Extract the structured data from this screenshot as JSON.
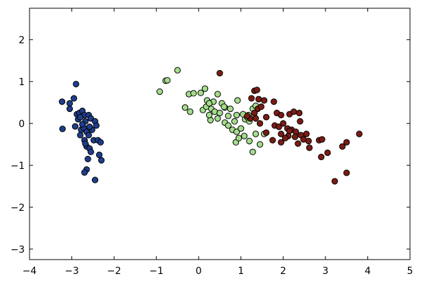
{
  "chart_data": {
    "type": "scatter",
    "title": "",
    "xlabel": "",
    "ylabel": "",
    "xlim": [
      -4,
      5
    ],
    "ylim": [
      -3.25,
      2.75
    ],
    "grid": false,
    "legend": "none",
    "xticks": [
      -4,
      -3,
      -2,
      -1,
      0,
      1,
      2,
      3,
      4,
      5
    ],
    "xtick_labels": [
      "−4",
      "−3",
      "−2",
      "−1",
      "0",
      "1",
      "2",
      "3",
      "4",
      "5"
    ],
    "yticks": [
      -3,
      -2,
      -1,
      0,
      1,
      2
    ],
    "ytick_labels": [
      "−3",
      "−2",
      "−1",
      "0",
      "1",
      "2"
    ],
    "series": [
      {
        "color": "#1f3d8c",
        "points": [
          [
            -3.23,
            0.52
          ],
          [
            -3.05,
            0.48
          ],
          [
            -2.9,
            0.94
          ],
          [
            -2.88,
            0.22
          ],
          [
            -2.82,
            0.25
          ],
          [
            -2.75,
            0.3
          ],
          [
            -2.7,
            0.2
          ],
          [
            -2.6,
            0.2
          ],
          [
            -2.55,
            0.12
          ],
          [
            -2.45,
            0.05
          ],
          [
            -2.42,
            -0.05
          ],
          [
            -3.22,
            -0.13
          ],
          [
            -2.85,
            0.1
          ],
          [
            -2.92,
            -0.07
          ],
          [
            -2.78,
            -0.15
          ],
          [
            -2.72,
            -0.1
          ],
          [
            -2.65,
            -0.2
          ],
          [
            -2.6,
            -0.28
          ],
          [
            -2.52,
            -0.15
          ],
          [
            -2.48,
            -0.4
          ],
          [
            -2.38,
            -0.4
          ],
          [
            -2.32,
            -0.45
          ],
          [
            -2.8,
            -0.28
          ],
          [
            -2.7,
            -0.4
          ],
          [
            -2.65,
            -0.55
          ],
          [
            -2.58,
            -0.6
          ],
          [
            -2.55,
            -0.68
          ],
          [
            -2.62,
            -0.85
          ],
          [
            -2.35,
            -0.75
          ],
          [
            -2.3,
            -0.88
          ],
          [
            -2.65,
            -1.1
          ],
          [
            -2.7,
            -1.17
          ],
          [
            -2.45,
            -1.35
          ],
          [
            -3.05,
            0.35
          ],
          [
            -2.95,
            0.6
          ],
          [
            -2.8,
            0.15
          ],
          [
            -2.68,
            0.05
          ],
          [
            -2.75,
            -0.02
          ],
          [
            -2.58,
            -0.08
          ],
          [
            -2.68,
            -0.48
          ]
        ]
      },
      {
        "color": "#a4dc8c",
        "points": [
          [
            -0.5,
            1.27
          ],
          [
            -0.78,
            1.02
          ],
          [
            -0.92,
            0.76
          ],
          [
            -0.74,
            1.03
          ],
          [
            -0.23,
            0.7
          ],
          [
            -0.12,
            0.72
          ],
          [
            0.05,
            0.73
          ],
          [
            0.15,
            0.83
          ],
          [
            0.2,
            0.55
          ],
          [
            0.35,
            0.52
          ],
          [
            0.45,
            0.7
          ],
          [
            -0.32,
            0.38
          ],
          [
            -0.2,
            0.28
          ],
          [
            0.1,
            0.32
          ],
          [
            0.18,
            0.4
          ],
          [
            0.25,
            0.48
          ],
          [
            0.3,
            0.35
          ],
          [
            0.38,
            0.28
          ],
          [
            0.5,
            0.25
          ],
          [
            0.55,
            0.48
          ],
          [
            0.62,
            0.38
          ],
          [
            0.75,
            0.35
          ],
          [
            0.9,
            0.2
          ],
          [
            0.92,
            0.55
          ],
          [
            1.05,
            0.22
          ],
          [
            1.1,
            0.1
          ],
          [
            1.18,
            0.2
          ],
          [
            1.2,
            0.05
          ],
          [
            1.28,
            0.35
          ],
          [
            1.35,
            0.42
          ],
          [
            0.28,
            0.08
          ],
          [
            0.45,
            0.12
          ],
          [
            0.62,
            0.02
          ],
          [
            0.7,
            -0.05
          ],
          [
            0.8,
            -0.15
          ],
          [
            0.9,
            -0.2
          ],
          [
            1.0,
            -0.12
          ],
          [
            1.08,
            -0.3
          ],
          [
            1.2,
            -0.42
          ],
          [
            1.35,
            -0.25
          ],
          [
            1.45,
            -0.5
          ],
          [
            1.55,
            -0.25
          ],
          [
            0.88,
            -0.45
          ],
          [
            1.28,
            -0.68
          ],
          [
            0.85,
            0.05
          ],
          [
            0.7,
            0.18
          ],
          [
            0.25,
            0.2
          ],
          [
            0.95,
            -0.35
          ],
          [
            1.15,
            0.15
          ],
          [
            0.6,
            0.4
          ]
        ]
      },
      {
        "color": "#7a1c14",
        "points": [
          [
            0.5,
            1.2
          ],
          [
            1.32,
            0.78
          ],
          [
            1.38,
            0.8
          ],
          [
            1.42,
            0.58
          ],
          [
            1.55,
            0.55
          ],
          [
            1.25,
            0.6
          ],
          [
            1.78,
            0.52
          ],
          [
            1.4,
            0.35
          ],
          [
            1.32,
            0.25
          ],
          [
            1.48,
            0.4
          ],
          [
            1.6,
            0.15
          ],
          [
            1.22,
            0.12
          ],
          [
            1.35,
            0.12
          ],
          [
            1.15,
            0.18
          ],
          [
            1.85,
            0.25
          ],
          [
            1.95,
            0.2
          ],
          [
            2.15,
            0.22
          ],
          [
            2.38,
            0.25
          ],
          [
            2.25,
            0.28
          ],
          [
            2.4,
            0.05
          ],
          [
            1.8,
            -0.05
          ],
          [
            1.9,
            -0.08
          ],
          [
            2.0,
            0.0
          ],
          [
            2.1,
            -0.12
          ],
          [
            2.2,
            -0.15
          ],
          [
            2.3,
            -0.2
          ],
          [
            2.42,
            -0.28
          ],
          [
            2.55,
            -0.25
          ],
          [
            2.6,
            -0.42
          ],
          [
            2.48,
            -0.38
          ],
          [
            2.28,
            -0.32
          ],
          [
            2.12,
            -0.3
          ],
          [
            1.95,
            -0.25
          ],
          [
            1.6,
            -0.22
          ],
          [
            1.75,
            -0.4
          ],
          [
            1.95,
            -0.45
          ],
          [
            2.35,
            -0.48
          ],
          [
            2.62,
            -0.58
          ],
          [
            2.85,
            -0.4
          ],
          [
            2.92,
            -0.38
          ],
          [
            3.05,
            -0.7
          ],
          [
            2.9,
            -0.8
          ],
          [
            3.4,
            -0.55
          ],
          [
            3.5,
            -0.45
          ],
          [
            3.8,
            -0.25
          ],
          [
            3.5,
            -1.18
          ],
          [
            3.22,
            -1.38
          ],
          [
            2.15,
            -0.18
          ],
          [
            1.45,
            0.0
          ],
          [
            2.05,
            -0.35
          ]
        ]
      }
    ]
  }
}
